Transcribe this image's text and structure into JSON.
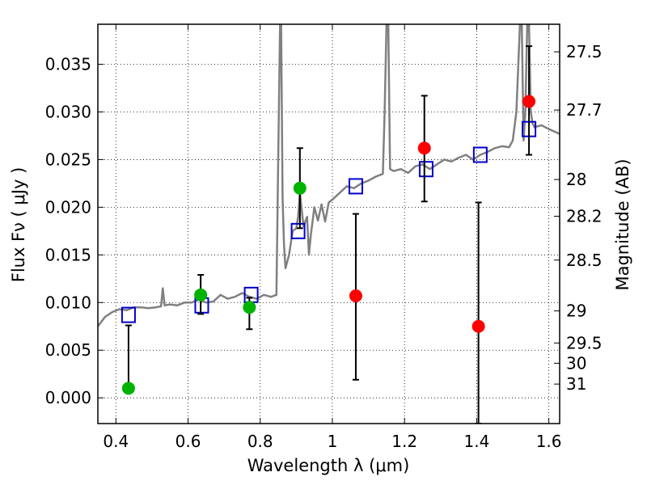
{
  "chart_data": {
    "type": "scatter",
    "xlabel": "Wavelength  λ (μm)",
    "ylabel": "Flux  Fν  ( μJy )",
    "y2label": "Magnitude (AB)",
    "xlim": [
      0.35,
      1.63
    ],
    "ylim": [
      -0.0027,
      0.0392
    ],
    "grid": true,
    "x_ticks": [
      {
        "value": 0.4,
        "label": "0.4"
      },
      {
        "value": 0.6,
        "label": "0.6"
      },
      {
        "value": 0.8,
        "label": "0.8"
      },
      {
        "value": 1.0,
        "label": "1"
      },
      {
        "value": 1.2,
        "label": "1.2"
      },
      {
        "value": 1.4,
        "label": "1.4"
      },
      {
        "value": 1.6,
        "label": "1.6"
      }
    ],
    "y_ticks": [
      {
        "value": 0.0,
        "label": "0.000"
      },
      {
        "value": 0.005,
        "label": "0.005"
      },
      {
        "value": 0.01,
        "label": "0.010"
      },
      {
        "value": 0.015,
        "label": "0.015"
      },
      {
        "value": 0.02,
        "label": "0.020"
      },
      {
        "value": 0.025,
        "label": "0.025"
      },
      {
        "value": 0.03,
        "label": "0.030"
      },
      {
        "value": 0.035,
        "label": "0.035"
      }
    ],
    "magnitude_ticks": [
      {
        "mag": 27.5,
        "label": "27.5"
      },
      {
        "mag": 27.7,
        "label": "27.7"
      },
      {
        "mag": 28.0,
        "label": "28"
      },
      {
        "mag": 28.2,
        "label": "28.2"
      },
      {
        "mag": 28.5,
        "label": "28.5"
      },
      {
        "mag": 29.0,
        "label": "29"
      },
      {
        "mag": 29.5,
        "label": "29.5"
      },
      {
        "mag": 30.0,
        "label": "30"
      },
      {
        "mag": 31.0,
        "label": "31"
      }
    ],
    "series": [
      {
        "kind": "line",
        "color": "#808080",
        "x": [
          0.35,
          0.37,
          0.39,
          0.41,
          0.43,
          0.45,
          0.47,
          0.49,
          0.51,
          0.525,
          0.53,
          0.535,
          0.55,
          0.57,
          0.59,
          0.61,
          0.63,
          0.65,
          0.67,
          0.69,
          0.71,
          0.73,
          0.75,
          0.77,
          0.79,
          0.81,
          0.83,
          0.845,
          0.85,
          0.855,
          0.858,
          0.862,
          0.866,
          0.87,
          0.88,
          0.89,
          0.9,
          0.905,
          0.91,
          0.92,
          0.93,
          0.935,
          0.94,
          0.95,
          0.96,
          0.97,
          0.98,
          0.99,
          1.0,
          1.02,
          1.04,
          1.06,
          1.08,
          1.1,
          1.12,
          1.14,
          1.145,
          1.15,
          1.155,
          1.16,
          1.17,
          1.19,
          1.21,
          1.23,
          1.25,
          1.27,
          1.29,
          1.31,
          1.33,
          1.35,
          1.37,
          1.39,
          1.41,
          1.43,
          1.45,
          1.47,
          1.49,
          1.5,
          1.51,
          1.52,
          1.525,
          1.53,
          1.535,
          1.54,
          1.545,
          1.55,
          1.555,
          1.56,
          1.58,
          1.6,
          1.63
        ],
        "y": [
          0.0075,
          0.0085,
          0.009,
          0.0093,
          0.0092,
          0.0095,
          0.0095,
          0.0094,
          0.0095,
          0.0096,
          0.0115,
          0.0097,
          0.0098,
          0.0097,
          0.01,
          0.01,
          0.0103,
          0.01,
          0.0101,
          0.0108,
          0.0104,
          0.0106,
          0.011,
          0.0106,
          0.0104,
          0.0108,
          0.0106,
          0.0108,
          0.025,
          0.0392,
          0.0392,
          0.021,
          0.016,
          0.0136,
          0.015,
          0.0175,
          0.0178,
          0.019,
          0.0215,
          0.018,
          0.019,
          0.015,
          0.017,
          0.02,
          0.0186,
          0.0203,
          0.0185,
          0.0205,
          0.0208,
          0.0215,
          0.0222,
          0.022,
          0.0225,
          0.0228,
          0.0232,
          0.0235,
          0.03,
          0.0392,
          0.0392,
          0.024,
          0.0238,
          0.024,
          0.0236,
          0.0243,
          0.0245,
          0.024,
          0.0245,
          0.025,
          0.0248,
          0.0252,
          0.0255,
          0.025,
          0.0255,
          0.0258,
          0.0262,
          0.0264,
          0.0263,
          0.027,
          0.03,
          0.0392,
          0.0392,
          0.027,
          0.03,
          0.0392,
          0.0392,
          0.03,
          0.0288,
          0.0284,
          0.0286,
          0.0282,
          0.0277
        ]
      },
      {
        "kind": "squares",
        "color": "#0000cc",
        "x": [
          0.435,
          0.638,
          0.775,
          0.905,
          1.065,
          1.26,
          1.41,
          1.545
        ],
        "y": [
          0.0087,
          0.0097,
          0.0108,
          0.0175,
          0.0222,
          0.024,
          0.0255,
          0.0282
        ]
      },
      {
        "kind": "points",
        "color": "#00b300",
        "x": [
          0.435,
          0.635,
          0.77,
          0.91
        ],
        "y": [
          0.001,
          0.0108,
          0.0095,
          0.022
        ],
        "err_lo": [
          0.001,
          0.0088,
          0.0072,
          0.0178
        ],
        "err_hi": [
          0.0076,
          0.0129,
          0.0105,
          0.0262
        ]
      },
      {
        "kind": "points",
        "color": "#ff0000",
        "x": [
          1.065,
          1.255,
          1.405,
          1.545
        ],
        "y": [
          0.0107,
          0.0262,
          0.0075,
          0.0311
        ],
        "err_lo": [
          0.0019,
          0.0206,
          -0.0027,
          0.0255
        ],
        "err_hi": [
          0.0193,
          0.0317,
          0.0205,
          0.0369
        ]
      }
    ]
  }
}
